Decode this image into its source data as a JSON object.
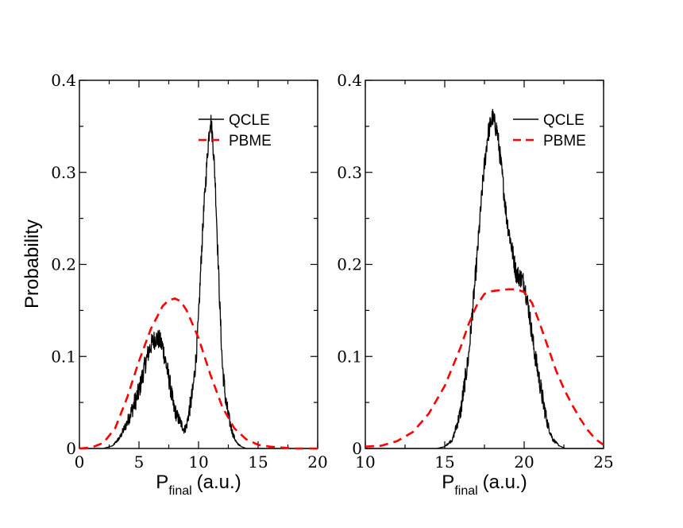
{
  "chart_data": [
    {
      "type": "line",
      "panel": "left",
      "ylabel": "Probability",
      "xlabel_main": "P",
      "xlabel_sub": "final",
      "xlabel_unit": "(a.u.)",
      "xlim": [
        0,
        20
      ],
      "ylim": [
        0,
        0.4
      ],
      "xticks": [
        "0",
        "5",
        "10",
        "15",
        "20"
      ],
      "xtick_values": [
        0,
        5,
        10,
        15,
        20
      ],
      "yticks": [
        "0",
        "0.1",
        "0.2",
        "0.3",
        "0.4"
      ],
      "ytick_values": [
        0,
        0.1,
        0.2,
        0.3,
        0.4
      ],
      "legend": [
        "QCLE",
        "PBME"
      ],
      "legend_position": "top-right",
      "series": [
        {
          "name": "QCLE",
          "color": "#000000",
          "style": "solid",
          "x": [
            0,
            2.0,
            2.8,
            3.4,
            4.0,
            4.5,
            5.0,
            5.4,
            5.8,
            6.1,
            6.4,
            6.7,
            7.0,
            7.3,
            7.6,
            7.9,
            8.2,
            8.5,
            8.8,
            9.0,
            9.2,
            9.5,
            9.8,
            10.0,
            10.2,
            10.4,
            10.6,
            10.8,
            11.0,
            11.2,
            11.4,
            11.6,
            11.8,
            12.0,
            12.3,
            12.6,
            12.9,
            13.2,
            13.6,
            14.0,
            20.0
          ],
          "y": [
            0,
            0,
            0.003,
            0.012,
            0.028,
            0.045,
            0.062,
            0.085,
            0.105,
            0.115,
            0.12,
            0.118,
            0.11,
            0.09,
            0.07,
            0.045,
            0.035,
            0.028,
            0.02,
            0.025,
            0.04,
            0.06,
            0.1,
            0.14,
            0.2,
            0.25,
            0.29,
            0.33,
            0.36,
            0.335,
            0.29,
            0.22,
            0.15,
            0.09,
            0.05,
            0.03,
            0.015,
            0.006,
            0.002,
            0,
            0
          ]
        },
        {
          "name": "PBME",
          "color": "#ff0000",
          "style": "dashed",
          "x": [
            0,
            1.0,
            2.0,
            3.0,
            4.0,
            5.0,
            6.0,
            7.0,
            7.5,
            8.0,
            8.5,
            9.0,
            10.0,
            11.0,
            12.0,
            13.0,
            14.0,
            15.0,
            16.0,
            17.0,
            18.0,
            20.0
          ],
          "y": [
            0,
            0.001,
            0.006,
            0.022,
            0.055,
            0.095,
            0.13,
            0.155,
            0.161,
            0.163,
            0.16,
            0.15,
            0.12,
            0.08,
            0.045,
            0.022,
            0.01,
            0.004,
            0.002,
            0.001,
            0,
            0
          ]
        }
      ]
    },
    {
      "type": "line",
      "panel": "right",
      "ylabel": "",
      "xlabel_main": "P",
      "xlabel_sub": "final",
      "xlabel_unit": "(a.u.)",
      "xlim": [
        10,
        25
      ],
      "ylim": [
        0,
        0.4
      ],
      "xticks": [
        "10",
        "15",
        "20",
        "25"
      ],
      "xtick_values": [
        10,
        15,
        20,
        25
      ],
      "yticks": [
        "0",
        "0.1",
        "0.2",
        "0.3",
        "0.4"
      ],
      "ytick_values": [
        0,
        0.1,
        0.2,
        0.3,
        0.4
      ],
      "legend": [
        "QCLE",
        "PBME"
      ],
      "legend_position": "top-right",
      "series": [
        {
          "name": "QCLE",
          "color": "#000000",
          "style": "solid",
          "x": [
            10,
            14.5,
            15.0,
            15.5,
            16.0,
            16.5,
            17.0,
            17.4,
            17.7,
            18.0,
            18.3,
            18.6,
            18.9,
            19.2,
            19.5,
            19.8,
            20.0,
            20.3,
            20.6,
            20.9,
            21.2,
            21.5,
            21.8,
            22.2,
            22.6,
            25.0
          ],
          "y": [
            0,
            0,
            0.002,
            0.01,
            0.04,
            0.1,
            0.2,
            0.29,
            0.34,
            0.36,
            0.345,
            0.3,
            0.25,
            0.22,
            0.19,
            0.185,
            0.18,
            0.15,
            0.11,
            0.08,
            0.05,
            0.025,
            0.01,
            0.003,
            0,
            0
          ]
        },
        {
          "name": "PBME",
          "color": "#ff0000",
          "style": "dashed",
          "x": [
            10,
            11.0,
            12.0,
            13.0,
            14.0,
            15.0,
            16.0,
            16.5,
            17.0,
            17.5,
            18.0,
            18.5,
            19.0,
            19.5,
            20.0,
            20.5,
            21.0,
            21.5,
            22.0,
            22.5,
            23.0,
            23.5,
            24.0,
            24.5,
            25.0
          ],
          "y": [
            0.002,
            0.003,
            0.008,
            0.018,
            0.038,
            0.068,
            0.11,
            0.135,
            0.155,
            0.168,
            0.171,
            0.172,
            0.173,
            0.173,
            0.17,
            0.158,
            0.135,
            0.11,
            0.085,
            0.065,
            0.048,
            0.033,
            0.02,
            0.01,
            0.004
          ]
        }
      ]
    }
  ]
}
